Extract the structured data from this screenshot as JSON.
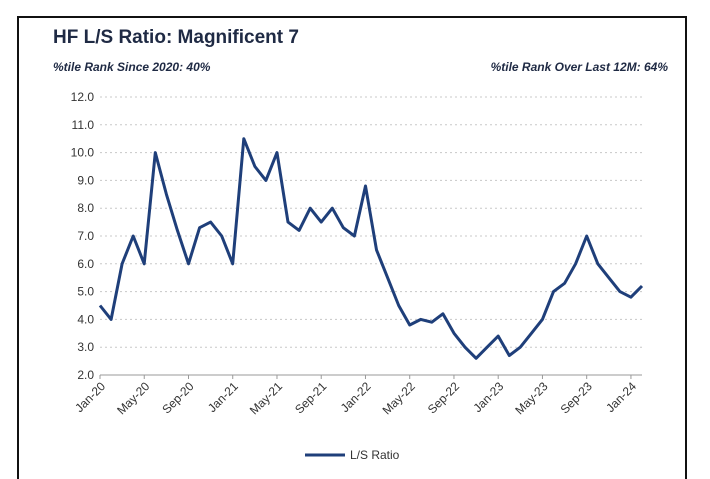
{
  "chart_data": {
    "type": "line",
    "title": "HF L/S Ratio: Magnificent 7",
    "subtitle_left": "%tile Rank Since 2020: 40%",
    "subtitle_right": "%tile Rank Over Last 12M: 64%",
    "xlabel": "",
    "ylabel": "",
    "ylim": [
      2.0,
      12.0
    ],
    "y_ticks": [
      "2.0",
      "3.0",
      "4.0",
      "5.0",
      "6.0",
      "7.0",
      "8.0",
      "9.0",
      "10.0",
      "11.0",
      "12.0"
    ],
    "x_ticks": [
      "Jan-20",
      "May-20",
      "Sep-20",
      "Jan-21",
      "May-21",
      "Sep-21",
      "Jan-22",
      "May-22",
      "Sep-22",
      "Jan-23",
      "May-23",
      "Sep-23",
      "Jan-24"
    ],
    "grid": true,
    "legend": "bottom-center",
    "color": "#1f3f7a",
    "series": [
      {
        "name": "L/S Ratio",
        "x": [
          "2020-01",
          "2020-02",
          "2020-03",
          "2020-04",
          "2020-05",
          "2020-06",
          "2020-07",
          "2020-08",
          "2020-09",
          "2020-10",
          "2020-11",
          "2020-12",
          "2021-01",
          "2021-02",
          "2021-03",
          "2021-04",
          "2021-05",
          "2021-06",
          "2021-07",
          "2021-08",
          "2021-09",
          "2021-10",
          "2021-11",
          "2021-12",
          "2022-01",
          "2022-02",
          "2022-03",
          "2022-04",
          "2022-05",
          "2022-06",
          "2022-07",
          "2022-08",
          "2022-09",
          "2022-10",
          "2022-11",
          "2022-12",
          "2023-01",
          "2023-02",
          "2023-03",
          "2023-04",
          "2023-05",
          "2023-06",
          "2023-07",
          "2023-08",
          "2023-09",
          "2023-10",
          "2023-11",
          "2023-12",
          "2024-01",
          "2024-02"
        ],
        "values": [
          4.5,
          4.0,
          6.0,
          7.0,
          6.0,
          10.0,
          8.5,
          7.2,
          6.0,
          7.3,
          7.5,
          7.0,
          6.0,
          10.5,
          9.5,
          9.0,
          10.0,
          7.5,
          7.2,
          8.0,
          7.5,
          8.0,
          7.3,
          7.0,
          8.8,
          6.5,
          5.5,
          4.5,
          3.8,
          4.0,
          3.9,
          4.2,
          3.5,
          3.0,
          2.6,
          3.0,
          3.4,
          2.7,
          3.0,
          3.5,
          4.0,
          5.0,
          5.3,
          6.0,
          7.0,
          6.0,
          5.5,
          5.0,
          4.8,
          5.2
        ]
      }
    ]
  }
}
